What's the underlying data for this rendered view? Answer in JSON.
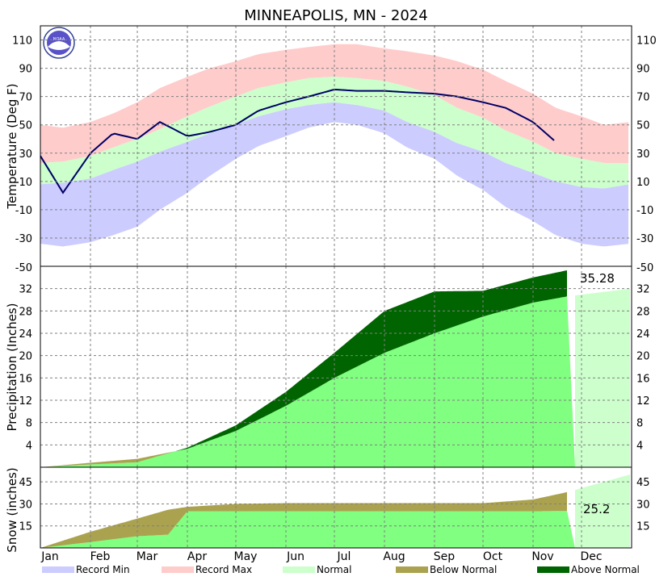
{
  "title": "MINNEAPOLIS, MN - 2024",
  "logo_text": "NOAA",
  "months": [
    "Jan",
    "Feb",
    "Mar",
    "Apr",
    "May",
    "Jun",
    "Jul",
    "Aug",
    "Sep",
    "Oct",
    "Nov",
    "Dec"
  ],
  "colors": {
    "record_min": "#ccccff",
    "record_max": "#ffcccc",
    "normal": "#ccffcc",
    "normal_bright": "#80ff80",
    "below_normal": "#aaa24f",
    "above_normal": "#006400",
    "actual_temp": "#000066",
    "grid": "#808080"
  },
  "legend": [
    {
      "label": "Record Min",
      "color": "#ccccff"
    },
    {
      "label": "Record Max",
      "color": "#ffcccc"
    },
    {
      "label": "Normal",
      "color": "#ccffcc"
    },
    {
      "label": "Below Normal",
      "color": "#aaa24f"
    },
    {
      "label": "Above Normal",
      "color": "#006400"
    }
  ],
  "chart_data": [
    {
      "type": "area",
      "ylabel": "Temperature (Deg F)",
      "ylim": [
        -50,
        120
      ],
      "yticks": [
        110,
        90,
        70,
        50,
        30,
        10,
        -10,
        -30
      ],
      "y_bottom_label": -50,
      "grid": true,
      "x": [
        "Jan 1",
        "Jan 15",
        "Feb 1",
        "Feb 15",
        "Mar 1",
        "Mar 15",
        "Apr 1",
        "Apr 15",
        "May 1",
        "May 15",
        "Jun 1",
        "Jun 15",
        "Jul 1",
        "Jul 15",
        "Aug 1",
        "Aug 15",
        "Sep 1",
        "Sep 15",
        "Oct 1",
        "Oct 15",
        "Nov 1",
        "Nov 15",
        "Dec 1",
        "Dec 15",
        "Dec 31"
      ],
      "series": [
        {
          "name": "Record Max",
          "values": [
            50,
            48,
            52,
            58,
            66,
            76,
            84,
            90,
            95,
            100,
            103,
            105,
            107,
            107,
            104,
            102,
            99,
            95,
            89,
            81,
            72,
            62,
            56,
            50,
            52
          ]
        },
        {
          "name": "Normal High",
          "values": [
            23,
            24,
            28,
            34,
            40,
            47,
            56,
            63,
            70,
            76,
            80,
            83,
            84,
            83,
            81,
            77,
            71,
            62,
            55,
            46,
            38,
            30,
            26,
            23,
            23
          ]
        },
        {
          "name": "Normal Low",
          "values": [
            8,
            9,
            12,
            18,
            24,
            31,
            38,
            44,
            50,
            56,
            61,
            64,
            66,
            64,
            60,
            52,
            45,
            37,
            31,
            23,
            16,
            10,
            6,
            5,
            8
          ]
        },
        {
          "name": "Record Min",
          "values": [
            -34,
            -36,
            -33,
            -28,
            -22,
            -10,
            2,
            14,
            26,
            35,
            42,
            48,
            52,
            50,
            44,
            34,
            26,
            14,
            4,
            -8,
            -18,
            -28,
            -34,
            -36,
            -34
          ]
        },
        {
          "name": "Actual Temperature",
          "values": [
            28,
            2,
            30,
            44,
            40,
            52,
            42,
            45,
            50,
            60,
            66,
            70,
            75,
            74,
            74,
            73,
            72,
            70,
            66,
            62,
            52,
            38,
            null,
            null,
            null
          ]
        }
      ]
    },
    {
      "type": "area",
      "ylabel": "Precipitation (Inches)",
      "ylim": [
        0,
        36
      ],
      "yticks": [
        32,
        28,
        24,
        20,
        16,
        12,
        8,
        4
      ],
      "grid": true,
      "annotation": "35.28",
      "x": [
        "Jan 1",
        "Feb 1",
        "Mar 1",
        "Apr 1",
        "May 1",
        "Jun 1",
        "Jul 1",
        "Aug 1",
        "Sep 1",
        "Oct 1",
        "Nov 1",
        "Nov 22",
        "Dec 31"
      ],
      "series": [
        {
          "name": "Normal",
          "values": [
            0,
            0.8,
            1.5,
            3.3,
            6.5,
            11,
            16,
            20.5,
            24,
            27,
            29.5,
            30.6,
            32
          ]
        },
        {
          "name": "Actual 2024",
          "values": [
            0,
            0.5,
            0.9,
            3.5,
            7.5,
            13.5,
            20.5,
            28,
            31.5,
            31.6,
            34,
            35.28,
            null
          ]
        }
      ]
    },
    {
      "type": "area",
      "ylabel": "Snow (inches)",
      "ylim": [
        0,
        55
      ],
      "yticks": [
        45,
        30,
        15
      ],
      "grid": true,
      "annotation": "25.2",
      "x": [
        "Jan 1",
        "Feb 1",
        "Mar 1",
        "Mar 20",
        "Apr 1",
        "May 1",
        "Jun 1",
        "Jul 1",
        "Aug 1",
        "Sep 1",
        "Oct 1",
        "Nov 1",
        "Nov 22",
        "Dec 31"
      ],
      "series": [
        {
          "name": "Normal",
          "values": [
            0,
            11,
            20,
            26,
            28,
            30,
            30.5,
            30.5,
            30.5,
            30.5,
            30.5,
            33,
            38,
            50
          ]
        },
        {
          "name": "Actual 2024",
          "values": [
            0,
            4,
            8,
            9,
            25,
            25,
            25,
            25,
            25,
            25,
            25,
            25,
            25.2,
            null
          ]
        }
      ]
    }
  ]
}
